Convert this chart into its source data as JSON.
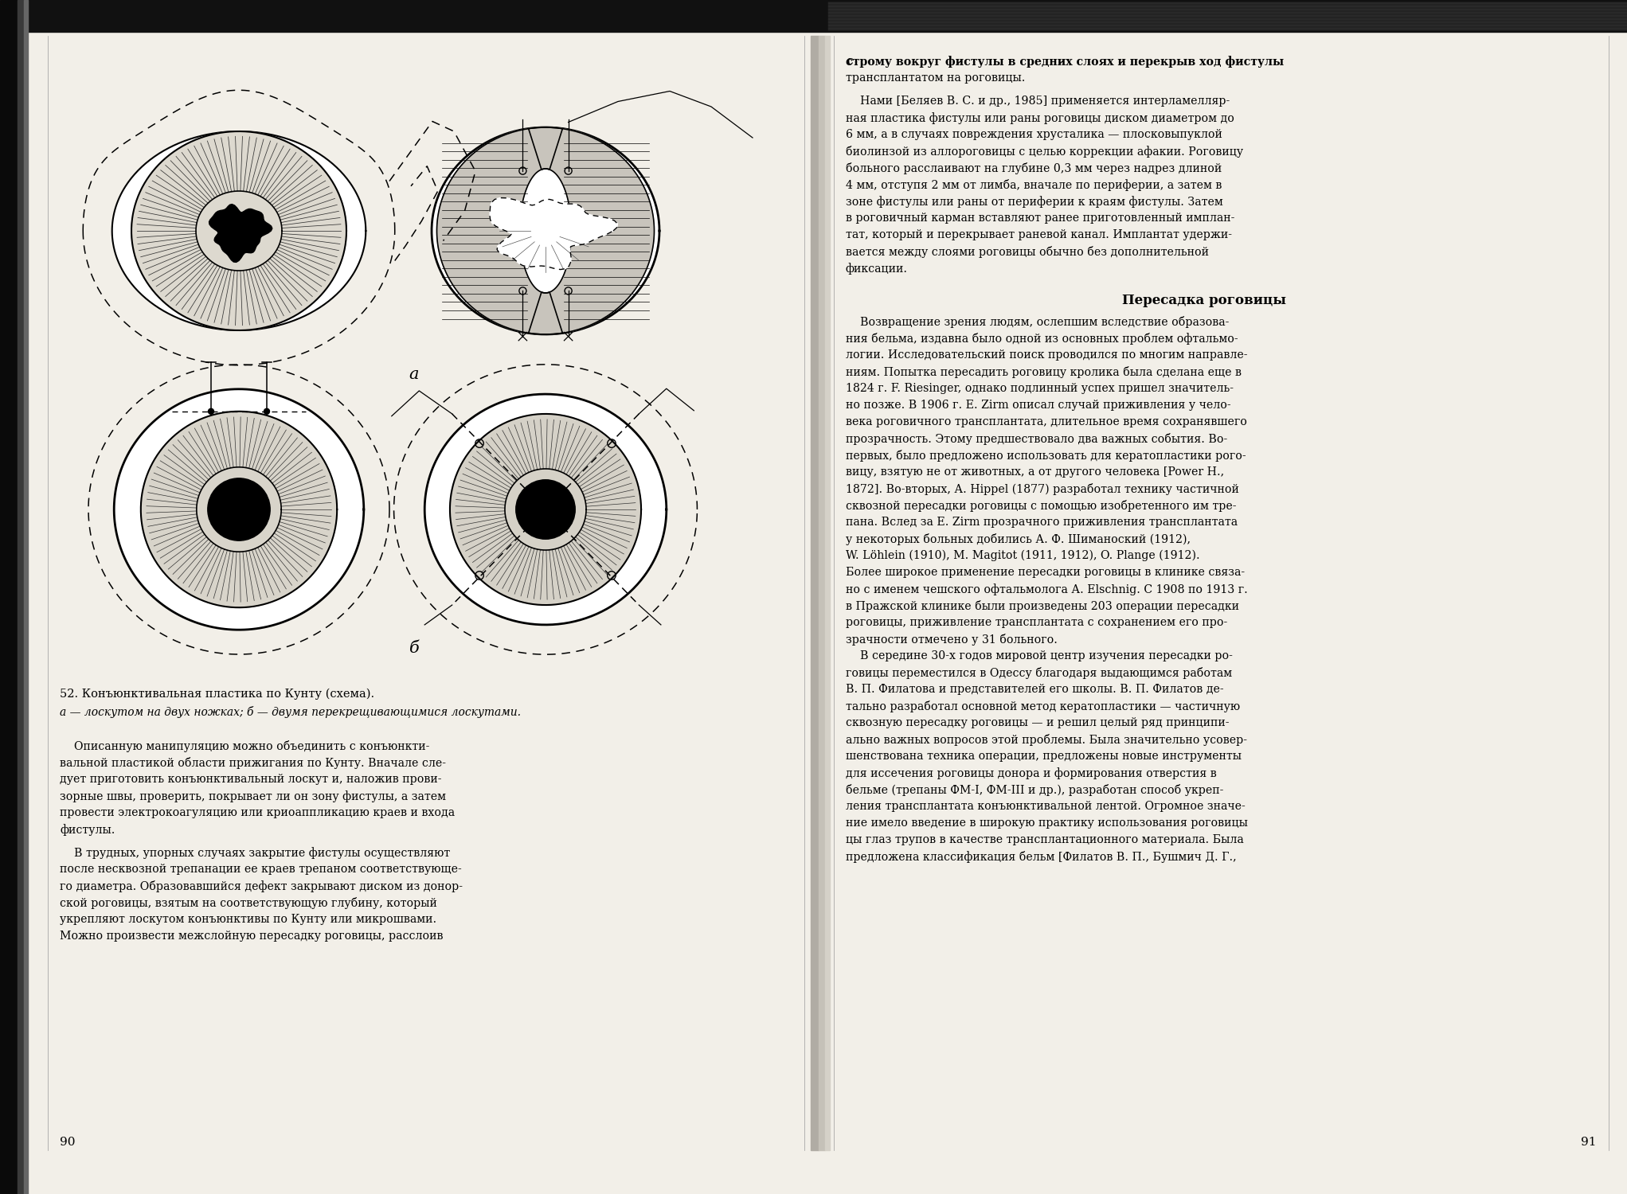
{
  "page_width": 20.43,
  "page_height": 15.0,
  "bg_color": "#c8c4bc",
  "left_page_bg": "#f2efe8",
  "right_page_bg": "#f2efe8",
  "left_page_num": "90",
  "right_page_num": "91",
  "figure_caption": "52. Конъюнктивальная пластика по Кунту (схема).",
  "figure_caption2": "а — лоскутом на двух ножках; б — двумя перекрещивающимися лоскутами.",
  "label_a": "а",
  "label_b": "б"
}
